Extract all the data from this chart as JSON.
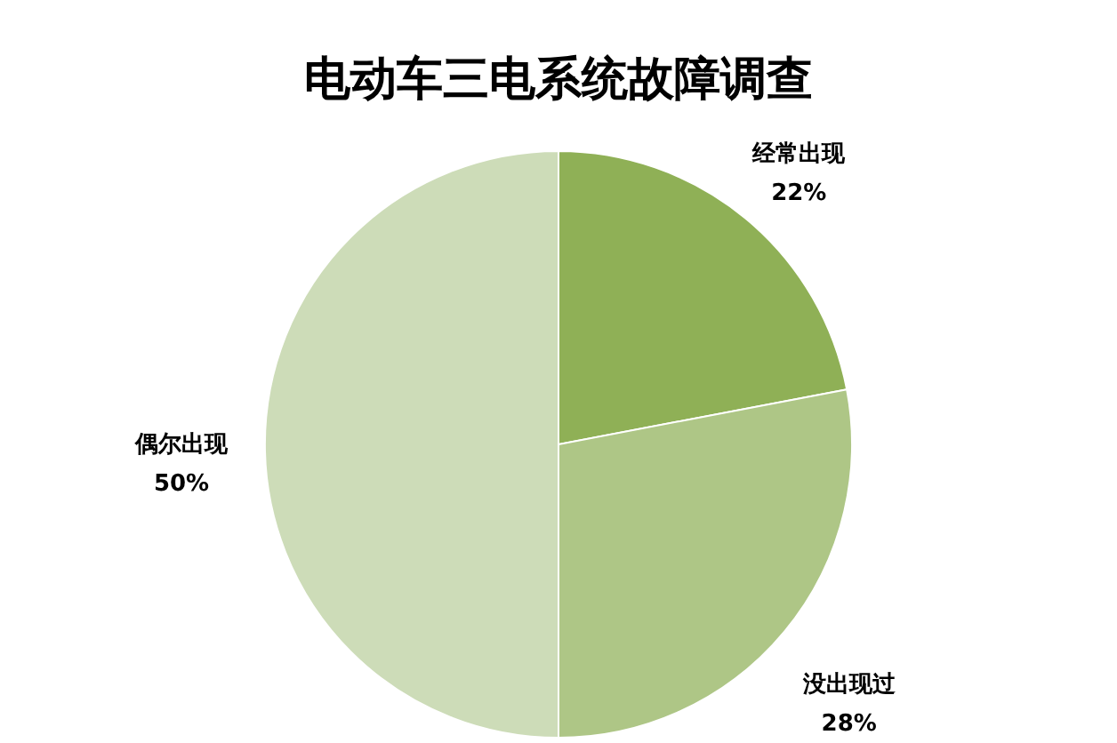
{
  "chart_data": {
    "type": "pie",
    "title": "电动车三电系统故障调查",
    "categories": [
      "经常出现",
      "没出现过",
      "偶尔出现"
    ],
    "values": [
      22,
      28,
      50
    ],
    "value_labels": [
      "22%",
      "28%",
      "50%"
    ],
    "colors": [
      "#8fb056",
      "#aec686",
      "#cddcb8"
    ],
    "legend": false
  }
}
